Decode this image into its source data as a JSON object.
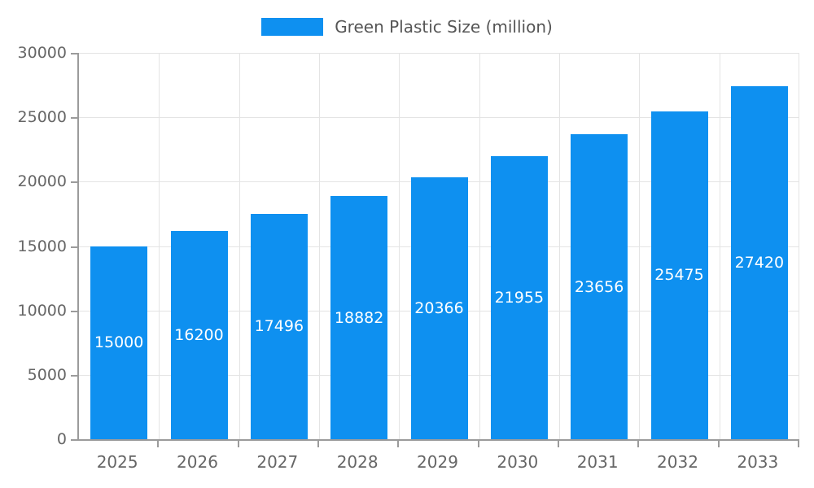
{
  "chart_data": {
    "type": "bar",
    "title": "",
    "legend": "Green Plastic Size (million)",
    "legend_position": "top",
    "categories": [
      "2025",
      "2026",
      "2027",
      "2028",
      "2029",
      "2030",
      "2031",
      "2032",
      "2033"
    ],
    "values": [
      15000,
      16200,
      17496,
      18882,
      20366,
      21955,
      23656,
      25475,
      27420
    ],
    "xlabel": "",
    "ylabel": "",
    "ylim": [
      0,
      30000
    ],
    "yticks": [
      0,
      5000,
      10000,
      15000,
      20000,
      25000,
      30000
    ],
    "grid": true,
    "bar_color": "#0e90f0",
    "value_label_color": "#ffffff",
    "axis_color": "#9b9b9b",
    "grid_color": "#e4e4e4",
    "tick_text_color": "#666666",
    "legend_text_color": "#555555"
  }
}
